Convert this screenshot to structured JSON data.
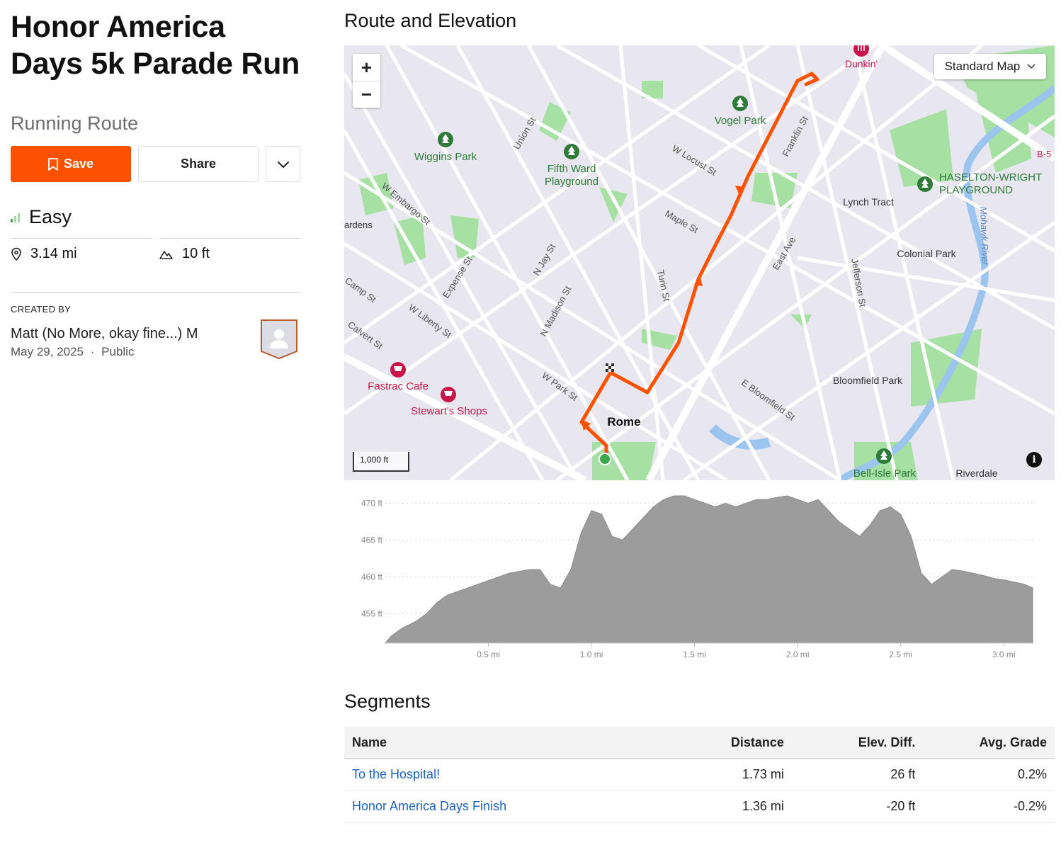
{
  "route": {
    "title": "Honor America Days 5k Parade Run",
    "type": "Running Route",
    "difficulty": "Easy",
    "distance": "3.14 mi",
    "elevation_gain": "10 ft"
  },
  "actions": {
    "save_label": "Save",
    "share_label": "Share"
  },
  "creator": {
    "heading": "CREATED BY",
    "name": "Matt (No More, okay fine...) M",
    "date": "May 29, 2025",
    "separator": "·",
    "visibility": "Public"
  },
  "map": {
    "section_title": "Route and Elevation",
    "map_type": "Standard Map",
    "scale_label": "1,000 ft",
    "zoom_in": "+",
    "zoom_out": "−",
    "info": "i",
    "labels": {
      "dunkin": "Dunkin'",
      "vogel_park": "Vogel Park",
      "wiggins_park": "Wiggins Park",
      "fifth_ward_1": "Fifth Ward",
      "fifth_ward_2": "Playground",
      "haselton_1": "HASELTON-WRIGHT",
      "haselton_2": "PLAYGROUND",
      "lynch_tract": "Lynch Tract",
      "colonial_park": "Colonial Park",
      "bloomfield_park": "Bloomfield Park",
      "bell_isle_park": "Bell-Isle Park",
      "riverdale": "Riverdale",
      "rome": "Rome",
      "fastrac": "Fastrac Cafe",
      "stewarts": "Stewart's Shops",
      "gardens": "ardens",
      "b5": "B-5",
      "union_st": "Union St",
      "franklin_st": "Franklin St",
      "w_locust_st": "W Locust St",
      "w_embargo_st": "W Embargo St",
      "maple_st": "Maple St",
      "east_ave": "East Ave",
      "jefferson_st": "Jefferson St",
      "mohawk_river": "Mohawk River",
      "expense_st": "Expense St",
      "n_jay_st": "N Jay St",
      "n_madison_st": "N Madison St",
      "turin_st": "Turin St",
      "camp_st": "Camp St",
      "w_liberty_st": "W Liberty St",
      "calvert_st": "Calvert St",
      "w_park_st": "W Park St",
      "e_bloomfield_st": "E Bloomfield St"
    }
  },
  "elevation_chart": {
    "y_ticks": [
      "470 ft",
      "465 ft",
      "460 ft",
      "455 ft"
    ],
    "x_ticks": [
      "0.5 mi",
      "1.0 mi",
      "1.5 mi",
      "2.0 mi",
      "2.5 mi",
      "3.0 mi"
    ],
    "fill_color": "#9c9c9c"
  },
  "chart_data": {
    "type": "area",
    "xlabel": "",
    "ylabel": "",
    "xlim": [
      0,
      3.14
    ],
    "ylim": [
      451,
      471
    ],
    "x": [
      0,
      0.03,
      0.08,
      0.15,
      0.2,
      0.25,
      0.3,
      0.4,
      0.5,
      0.6,
      0.7,
      0.75,
      0.8,
      0.85,
      0.9,
      0.95,
      1.0,
      1.05,
      1.1,
      1.15,
      1.2,
      1.25,
      1.3,
      1.35,
      1.4,
      1.45,
      1.5,
      1.55,
      1.6,
      1.65,
      1.7,
      1.75,
      1.8,
      1.85,
      1.9,
      1.95,
      2.0,
      2.05,
      2.1,
      2.15,
      2.2,
      2.25,
      2.3,
      2.35,
      2.4,
      2.45,
      2.5,
      2.55,
      2.6,
      2.65,
      2.7,
      2.75,
      2.8,
      2.85,
      2.9,
      2.95,
      3.0,
      3.05,
      3.1,
      3.14
    ],
    "series": [
      {
        "values": [
          451,
          452,
          453,
          454,
          455,
          456.5,
          457.5,
          458.5,
          459.5,
          460.5,
          461,
          461,
          459,
          458.5,
          461,
          466,
          469,
          468.5,
          465.5,
          465,
          466.5,
          468,
          469.5,
          470.5,
          471,
          471,
          470.5,
          470,
          469.5,
          470,
          469.5,
          470,
          470.5,
          470.5,
          470.8,
          471,
          470.5,
          470,
          470.5,
          469,
          467.5,
          466.5,
          465.5,
          467,
          469,
          469.5,
          468.5,
          465.5,
          460.5,
          459,
          460,
          461,
          460.8,
          460.5,
          460.2,
          459.8,
          459.6,
          459.3,
          459,
          458.5
        ]
      }
    ]
  },
  "segments": {
    "title": "Segments",
    "columns": [
      "Name",
      "Distance",
      "Elev. Diff.",
      "Avg. Grade"
    ],
    "rows": [
      {
        "name": "To the Hospital!",
        "distance": "1.73 mi",
        "elev_diff": "26 ft",
        "avg_grade": "0.2%"
      },
      {
        "name": "Honor America Days Finish",
        "distance": "1.36 mi",
        "elev_diff": "-20 ft",
        "avg_grade": "-0.2%"
      }
    ]
  },
  "colors": {
    "brand_orange": "#fc5200",
    "park_green": "#7fd782",
    "park_icon": "#2d7a39",
    "poi_red": "#c8154a",
    "link_blue": "#1d62c2",
    "difficulty_green": "#3fae49"
  }
}
